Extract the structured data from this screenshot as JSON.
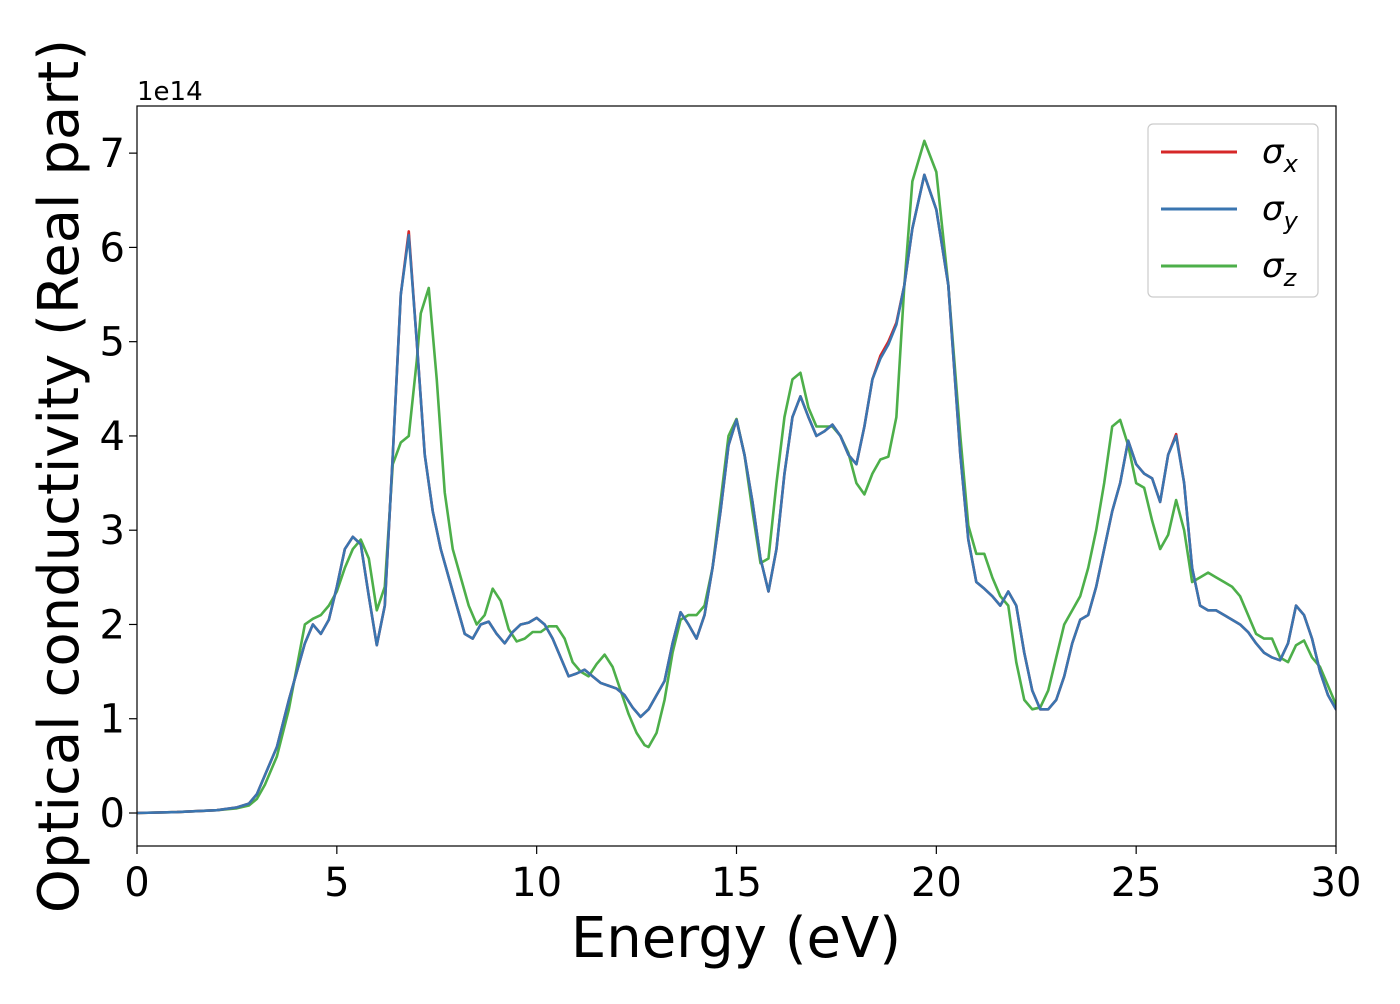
{
  "chart_data": {
    "type": "line",
    "title": "",
    "xlabel": "Energy (eV)",
    "ylabel": "Optical conductivity (Real part)",
    "y_offset_label": "1e14",
    "xlim": [
      0,
      30
    ],
    "ylim": [
      -0.35,
      7.5
    ],
    "x_ticks": [
      0,
      5,
      10,
      15,
      20,
      25,
      30
    ],
    "y_ticks": [
      0,
      1,
      2,
      3,
      4,
      5,
      6,
      7
    ],
    "grid": false,
    "legend_position": "top-right",
    "series": [
      {
        "name": "σx",
        "legend_symbol": "σ",
        "legend_sub": "x",
        "color": "#d62728",
        "x": [
          0,
          1,
          2,
          2.5,
          2.8,
          3.0,
          3.2,
          3.5,
          3.8,
          4.0,
          4.2,
          4.4,
          4.6,
          4.8,
          5.0,
          5.2,
          5.4,
          5.6,
          5.8,
          6.0,
          6.2,
          6.4,
          6.6,
          6.8,
          7.0,
          7.2,
          7.4,
          7.6,
          7.8,
          8.0,
          8.2,
          8.4,
          8.6,
          8.8,
          9.0,
          9.2,
          9.4,
          9.6,
          9.8,
          10.0,
          10.2,
          10.4,
          10.6,
          10.8,
          11.0,
          11.2,
          11.4,
          11.6,
          11.8,
          12.0,
          12.2,
          12.4,
          12.6,
          12.8,
          13.0,
          13.2,
          13.4,
          13.6,
          13.8,
          14.0,
          14.2,
          14.4,
          14.6,
          14.8,
          15.0,
          15.2,
          15.4,
          15.6,
          15.8,
          16.0,
          16.2,
          16.4,
          16.6,
          16.8,
          17.0,
          17.2,
          17.4,
          17.6,
          17.8,
          18.0,
          18.2,
          18.4,
          18.6,
          18.8,
          19.0,
          19.2,
          19.4,
          19.7,
          20.0,
          20.3,
          20.6,
          20.8,
          21.0,
          21.2,
          21.4,
          21.6,
          21.8,
          22.0,
          22.2,
          22.4,
          22.6,
          22.8,
          23.0,
          23.2,
          23.4,
          23.6,
          23.8,
          24.0,
          24.2,
          24.4,
          24.6,
          24.8,
          25.0,
          25.2,
          25.4,
          25.6,
          25.8,
          26.0,
          26.2,
          26.4,
          26.6,
          26.8,
          27.0,
          27.2,
          27.4,
          27.6,
          27.8,
          28.0,
          28.2,
          28.4,
          28.6,
          28.8,
          29.0,
          29.2,
          29.4,
          29.6,
          29.8,
          30.0
        ],
        "y": [
          0,
          0.01,
          0.03,
          0.06,
          0.1,
          0.2,
          0.4,
          0.7,
          1.2,
          1.5,
          1.8,
          2.0,
          1.9,
          2.05,
          2.4,
          2.8,
          2.93,
          2.85,
          2.3,
          1.78,
          2.2,
          3.8,
          5.5,
          6.17,
          5.0,
          3.8,
          3.2,
          2.8,
          2.5,
          2.2,
          1.9,
          1.85,
          2.0,
          2.03,
          1.9,
          1.8,
          1.92,
          2.0,
          2.02,
          2.07,
          2.0,
          1.85,
          1.65,
          1.45,
          1.48,
          1.52,
          1.45,
          1.38,
          1.35,
          1.32,
          1.25,
          1.12,
          1.02,
          1.1,
          1.25,
          1.4,
          1.8,
          2.13,
          2.0,
          1.85,
          2.1,
          2.6,
          3.2,
          3.9,
          4.17,
          3.8,
          3.3,
          2.7,
          2.35,
          2.8,
          3.6,
          4.2,
          4.42,
          4.2,
          4.0,
          4.05,
          4.12,
          4.0,
          3.8,
          3.7,
          4.1,
          4.6,
          4.85,
          5.0,
          5.2,
          5.6,
          6.2,
          6.77,
          6.4,
          5.6,
          3.8,
          2.9,
          2.45,
          2.38,
          2.3,
          2.2,
          2.35,
          2.2,
          1.7,
          1.3,
          1.1,
          1.1,
          1.2,
          1.45,
          1.8,
          2.05,
          2.1,
          2.4,
          2.8,
          3.2,
          3.5,
          3.95,
          3.7,
          3.6,
          3.55,
          3.3,
          3.8,
          4.02,
          3.5,
          2.6,
          2.2,
          2.15,
          2.15,
          2.1,
          2.05,
          2.0,
          1.92,
          1.8,
          1.7,
          1.65,
          1.62,
          1.8,
          2.2,
          2.1,
          1.85,
          1.5,
          1.25,
          1.1
        ]
      },
      {
        "name": "σy",
        "legend_symbol": "σ",
        "legend_sub": "y",
        "color": "#3a75b0",
        "x": [
          0,
          1,
          2,
          2.5,
          2.8,
          3.0,
          3.2,
          3.5,
          3.8,
          4.0,
          4.2,
          4.4,
          4.6,
          4.8,
          5.0,
          5.2,
          5.4,
          5.6,
          5.8,
          6.0,
          6.2,
          6.4,
          6.6,
          6.8,
          7.0,
          7.2,
          7.4,
          7.6,
          7.8,
          8.0,
          8.2,
          8.4,
          8.6,
          8.8,
          9.0,
          9.2,
          9.4,
          9.6,
          9.8,
          10.0,
          10.2,
          10.4,
          10.6,
          10.8,
          11.0,
          11.2,
          11.4,
          11.6,
          11.8,
          12.0,
          12.2,
          12.4,
          12.6,
          12.8,
          13.0,
          13.2,
          13.4,
          13.6,
          13.8,
          14.0,
          14.2,
          14.4,
          14.6,
          14.8,
          15.0,
          15.2,
          15.4,
          15.6,
          15.8,
          16.0,
          16.2,
          16.4,
          16.6,
          16.8,
          17.0,
          17.2,
          17.4,
          17.6,
          17.8,
          18.0,
          18.2,
          18.4,
          18.6,
          18.8,
          19.0,
          19.2,
          19.4,
          19.7,
          20.0,
          20.3,
          20.6,
          20.8,
          21.0,
          21.2,
          21.4,
          21.6,
          21.8,
          22.0,
          22.2,
          22.4,
          22.6,
          22.8,
          23.0,
          23.2,
          23.4,
          23.6,
          23.8,
          24.0,
          24.2,
          24.4,
          24.6,
          24.8,
          25.0,
          25.2,
          25.4,
          25.6,
          25.8,
          26.0,
          26.2,
          26.4,
          26.6,
          26.8,
          27.0,
          27.2,
          27.4,
          27.6,
          27.8,
          28.0,
          28.2,
          28.4,
          28.6,
          28.8,
          29.0,
          29.2,
          29.4,
          29.6,
          29.8,
          30.0
        ],
        "y": [
          0,
          0.01,
          0.03,
          0.06,
          0.1,
          0.2,
          0.4,
          0.7,
          1.2,
          1.5,
          1.8,
          2.0,
          1.9,
          2.05,
          2.4,
          2.8,
          2.93,
          2.85,
          2.3,
          1.78,
          2.2,
          3.8,
          5.5,
          6.13,
          5.0,
          3.8,
          3.2,
          2.8,
          2.5,
          2.2,
          1.9,
          1.85,
          2.0,
          2.03,
          1.9,
          1.8,
          1.92,
          2.0,
          2.02,
          2.07,
          2.0,
          1.85,
          1.65,
          1.45,
          1.48,
          1.52,
          1.45,
          1.38,
          1.35,
          1.32,
          1.25,
          1.12,
          1.02,
          1.1,
          1.25,
          1.4,
          1.8,
          2.13,
          2.0,
          1.85,
          2.1,
          2.6,
          3.2,
          3.9,
          4.17,
          3.8,
          3.3,
          2.7,
          2.35,
          2.8,
          3.6,
          4.2,
          4.42,
          4.2,
          4.0,
          4.05,
          4.12,
          4.0,
          3.8,
          3.7,
          4.1,
          4.6,
          4.82,
          4.97,
          5.18,
          5.6,
          6.2,
          6.77,
          6.4,
          5.6,
          3.8,
          2.9,
          2.45,
          2.38,
          2.3,
          2.2,
          2.35,
          2.2,
          1.7,
          1.3,
          1.1,
          1.1,
          1.2,
          1.45,
          1.8,
          2.05,
          2.1,
          2.4,
          2.8,
          3.2,
          3.5,
          3.95,
          3.7,
          3.6,
          3.55,
          3.3,
          3.8,
          4.0,
          3.5,
          2.6,
          2.2,
          2.15,
          2.15,
          2.1,
          2.05,
          2.0,
          1.92,
          1.8,
          1.7,
          1.65,
          1.62,
          1.8,
          2.2,
          2.1,
          1.85,
          1.5,
          1.25,
          1.1
        ]
      },
      {
        "name": "σz",
        "legend_symbol": "σ",
        "legend_sub": "z",
        "color": "#4daf4a",
        "x": [
          0,
          1,
          2,
          2.5,
          2.8,
          3.0,
          3.2,
          3.5,
          3.8,
          4.0,
          4.2,
          4.4,
          4.6,
          4.8,
          5.0,
          5.2,
          5.4,
          5.6,
          5.8,
          6.0,
          6.2,
          6.4,
          6.6,
          6.8,
          7.0,
          7.1,
          7.3,
          7.5,
          7.7,
          7.9,
          8.1,
          8.3,
          8.5,
          8.7,
          8.9,
          9.1,
          9.3,
          9.5,
          9.7,
          9.9,
          10.1,
          10.3,
          10.5,
          10.7,
          10.9,
          11.1,
          11.3,
          11.5,
          11.7,
          11.9,
          12.1,
          12.3,
          12.5,
          12.7,
          12.8,
          13.0,
          13.2,
          13.4,
          13.6,
          13.8,
          14.0,
          14.2,
          14.4,
          14.6,
          14.8,
          15.0,
          15.2,
          15.4,
          15.6,
          15.8,
          16.0,
          16.2,
          16.4,
          16.6,
          16.8,
          17.0,
          17.2,
          17.4,
          17.6,
          17.8,
          18.0,
          18.2,
          18.4,
          18.6,
          18.8,
          19.0,
          19.2,
          19.4,
          19.7,
          20.0,
          20.3,
          20.6,
          20.8,
          21.0,
          21.2,
          21.4,
          21.6,
          21.8,
          22.0,
          22.2,
          22.4,
          22.6,
          22.8,
          23.0,
          23.2,
          23.4,
          23.6,
          23.8,
          24.0,
          24.2,
          24.4,
          24.6,
          24.8,
          25.0,
          25.2,
          25.4,
          25.6,
          25.8,
          26.0,
          26.2,
          26.4,
          26.6,
          26.8,
          27.0,
          27.2,
          27.4,
          27.6,
          27.8,
          28.0,
          28.2,
          28.4,
          28.6,
          28.8,
          29.0,
          29.2,
          29.4,
          29.6,
          29.8,
          30.0
        ],
        "y": [
          0,
          0.01,
          0.03,
          0.05,
          0.08,
          0.15,
          0.3,
          0.6,
          1.1,
          1.55,
          2.0,
          2.06,
          2.1,
          2.2,
          2.35,
          2.6,
          2.8,
          2.9,
          2.7,
          2.15,
          2.4,
          3.7,
          3.93,
          4.0,
          4.8,
          5.3,
          5.57,
          4.6,
          3.4,
          2.8,
          2.5,
          2.2,
          2.0,
          2.1,
          2.38,
          2.25,
          1.95,
          1.82,
          1.85,
          1.92,
          1.92,
          1.98,
          1.98,
          1.85,
          1.6,
          1.5,
          1.45,
          1.58,
          1.68,
          1.55,
          1.3,
          1.05,
          0.85,
          0.72,
          0.7,
          0.85,
          1.2,
          1.7,
          2.05,
          2.1,
          2.1,
          2.2,
          2.6,
          3.3,
          4.0,
          4.18,
          3.8,
          3.2,
          2.65,
          2.7,
          3.5,
          4.2,
          4.6,
          4.67,
          4.3,
          4.1,
          4.1,
          4.1,
          4.0,
          3.82,
          3.5,
          3.38,
          3.6,
          3.75,
          3.78,
          4.2,
          5.6,
          6.7,
          7.13,
          6.8,
          5.6,
          4.0,
          3.05,
          2.75,
          2.75,
          2.5,
          2.3,
          2.2,
          1.6,
          1.2,
          1.1,
          1.12,
          1.3,
          1.65,
          2.0,
          2.15,
          2.3,
          2.6,
          3.0,
          3.5,
          4.1,
          4.17,
          3.9,
          3.5,
          3.45,
          3.1,
          2.8,
          2.95,
          3.32,
          3.0,
          2.45,
          2.5,
          2.55,
          2.5,
          2.45,
          2.4,
          2.3,
          2.1,
          1.9,
          1.85,
          1.85,
          1.65,
          1.6,
          1.78,
          1.83,
          1.65,
          1.55,
          1.35,
          1.15
        ]
      }
    ]
  }
}
